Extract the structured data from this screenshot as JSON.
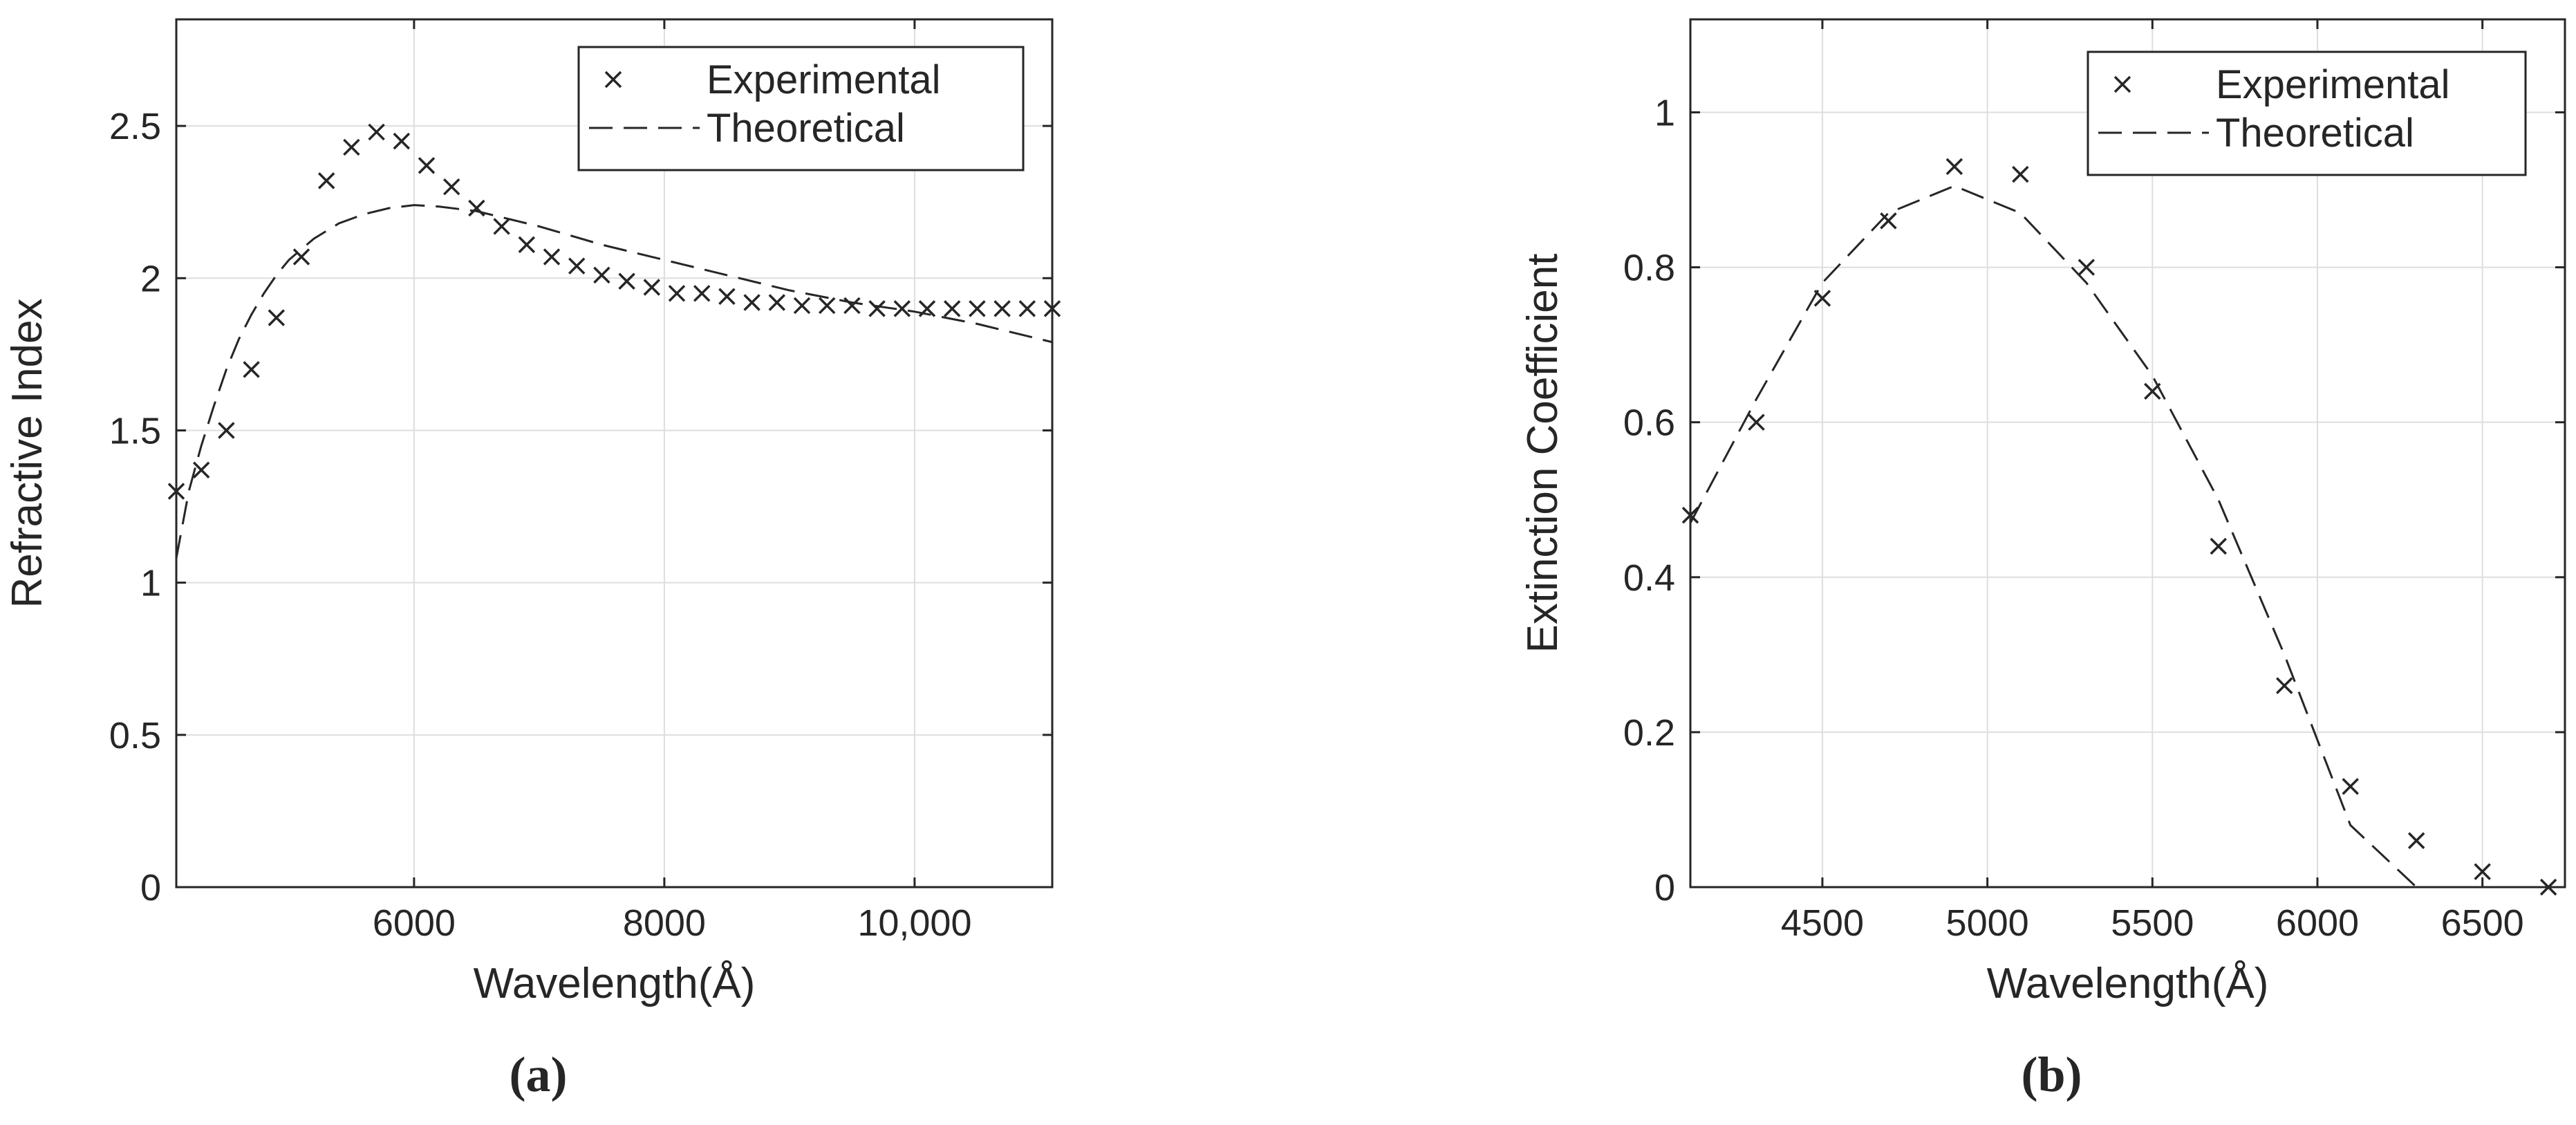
{
  "chart_data": [
    {
      "type": "scatter",
      "panel_label": "(a)",
      "xlabel": "Wavelength(Å)",
      "ylabel": "Refractive Index",
      "xlim": [
        4100,
        11100
      ],
      "ylim": [
        0,
        2.85
      ],
      "xticks": [
        6000,
        8000,
        10000
      ],
      "xtick_labels": [
        "6000",
        "8000",
        "10,000"
      ],
      "yticks": [
        0,
        0.5,
        1,
        1.5,
        2,
        2.5
      ],
      "ytick_labels": [
        "0",
        "0.5",
        "1",
        "1.5",
        "2",
        "2.5"
      ],
      "grid": true,
      "legend": "top-right",
      "series": [
        {
          "name": "Experimental",
          "style": "x-marker",
          "x": [
            4100,
            4300,
            4500,
            4700,
            4900,
            5100,
            5300,
            5500,
            5700,
            5900,
            6100,
            6300,
            6500,
            6700,
            6900,
            7100,
            7300,
            7500,
            7700,
            7900,
            8100,
            8300,
            8500,
            8700,
            8900,
            9100,
            9300,
            9500,
            9700,
            9900,
            10100,
            10300,
            10500,
            10700,
            10900,
            11100
          ],
          "y": [
            1.3,
            1.37,
            1.5,
            1.7,
            1.87,
            2.07,
            2.32,
            2.43,
            2.48,
            2.45,
            2.37,
            2.3,
            2.23,
            2.17,
            2.11,
            2.07,
            2.04,
            2.01,
            1.99,
            1.97,
            1.95,
            1.95,
            1.94,
            1.92,
            1.92,
            1.91,
            1.91,
            1.91,
            1.9,
            1.9,
            1.9,
            1.9,
            1.9,
            1.9,
            1.9,
            1.9
          ]
        },
        {
          "name": "Theoretical",
          "style": "dashed-line",
          "x": [
            4100,
            4200,
            4300,
            4400,
            4500,
            4600,
            4700,
            4800,
            4900,
            5000,
            5200,
            5400,
            5600,
            5800,
            6000,
            6200,
            6500,
            7000,
            7500,
            8000,
            8500,
            9000,
            9500,
            10000,
            10500,
            11100
          ],
          "y": [
            1.08,
            1.3,
            1.45,
            1.58,
            1.7,
            1.8,
            1.88,
            1.95,
            2.01,
            2.06,
            2.13,
            2.18,
            2.21,
            2.23,
            2.24,
            2.235,
            2.22,
            2.17,
            2.11,
            2.06,
            2.01,
            1.96,
            1.92,
            1.89,
            1.85,
            1.79
          ]
        }
      ]
    },
    {
      "type": "scatter",
      "panel_label": "(b)",
      "xlabel": "Wavelength(Å)",
      "ylabel": "Extinction Coefficient",
      "xlim": [
        4100,
        6750
      ],
      "ylim": [
        0,
        1.12
      ],
      "xticks": [
        4500,
        5000,
        5500,
        6000,
        6500
      ],
      "xtick_labels": [
        "4500",
        "5000",
        "5500",
        "6000",
        "6500"
      ],
      "yticks": [
        0,
        0.2,
        0.4,
        0.6,
        0.8,
        1
      ],
      "ytick_labels": [
        "0",
        "0.2",
        "0.4",
        "0.6",
        "0.8",
        "1"
      ],
      "grid": true,
      "legend": "top-right",
      "series": [
        {
          "name": "Experimental",
          "style": "x-marker",
          "x": [
            4100,
            4300,
            4500,
            4700,
            4900,
            5100,
            5300,
            5500,
            5700,
            5900,
            6100,
            6300,
            6500,
            6700
          ],
          "y": [
            0.48,
            0.6,
            0.76,
            0.86,
            0.93,
            0.92,
            0.8,
            0.64,
            0.44,
            0.26,
            0.13,
            0.06,
            0.02,
            0.0
          ]
        },
        {
          "name": "Theoretical",
          "style": "dashed-line",
          "x": [
            4100,
            4300,
            4500,
            4700,
            4900,
            5100,
            5300,
            5500,
            5700,
            5900,
            6100,
            6300,
            6500,
            6700
          ],
          "y": [
            0.47,
            0.63,
            0.78,
            0.87,
            0.905,
            0.87,
            0.78,
            0.66,
            0.5,
            0.3,
            0.08,
            0.0,
            0.0,
            0.0
          ]
        }
      ]
    }
  ]
}
